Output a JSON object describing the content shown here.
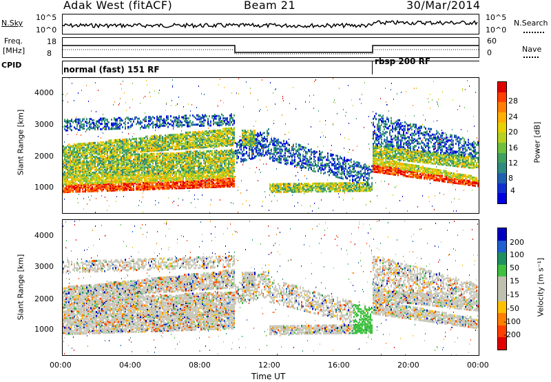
{
  "header": {
    "station": "Adak West (fitACF)",
    "beam": "Beam 21",
    "date": "30/Mar/2014"
  },
  "small_panels": {
    "nsky_label": "N.Sky",
    "nsearch_label": "N.Search",
    "noise_ticks": [
      "10^5",
      "10^0"
    ],
    "freq_label": "Freq.",
    "freq_unit": "[MHz]",
    "freq_ticks": [
      "18",
      "8"
    ],
    "nave_label": "Nave",
    "nave_ticks": [
      "60",
      "0"
    ],
    "cpid_label": "CPID",
    "cpid_segments": [
      "normal (fast) 151 RF",
      "rbsp 200 RF"
    ]
  },
  "chart_data": [
    {
      "type": "heatmap",
      "name": "power-panel",
      "ylabel": "Slant Range [km]",
      "yticks": [
        "4000",
        "3000",
        "2000",
        "1000"
      ],
      "ylim": [
        0,
        4600
      ],
      "xlim_hours": [
        0,
        24
      ],
      "colorbar": {
        "label": "Power [dB]",
        "ticks": [
          "28",
          "24",
          "20",
          "16",
          "12",
          "8",
          "4"
        ],
        "colors": [
          "#e00000",
          "#ff4000",
          "#ff8000",
          "#ffb000",
          "#e8d000",
          "#b8d020",
          "#70c040",
          "#40a060",
          "#2e8b80",
          "#2060b0",
          "#1030d0",
          "#0000e0"
        ]
      }
    },
    {
      "type": "heatmap",
      "name": "velocity-panel",
      "ylabel": "Slant Range [km]",
      "yticks": [
        "4000",
        "3000",
        "2000",
        "1000"
      ],
      "ylim": [
        0,
        4600
      ],
      "xlim_hours": [
        0,
        24
      ],
      "colorbar": {
        "label": "Velocity [m s⁻¹]",
        "ticks": [
          "200",
          "100",
          "50",
          "15",
          "-15",
          "-50",
          "-100",
          "-200"
        ],
        "colors": [
          "#0000c0",
          "#2060d0",
          "#209060",
          "#40c040",
          "#c0c0b0",
          "#c0c0b0",
          "#ffc000",
          "#ff8000",
          "#ff4000",
          "#e00000"
        ]
      }
    }
  ],
  "xaxis": {
    "ticks": [
      "00:00",
      "04:00",
      "08:00",
      "12:00",
      "16:00",
      "20:00",
      "00:00"
    ],
    "label": "Time UT"
  }
}
